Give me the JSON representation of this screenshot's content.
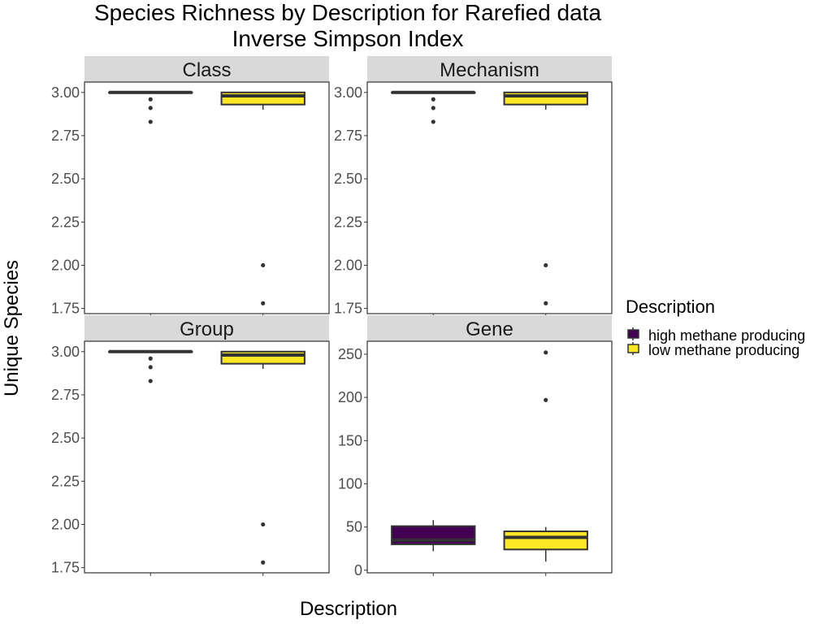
{
  "chart_data": {
    "type": "box",
    "title": "Species Richness by Description for Rarefied data",
    "subtitle": "Inverse Simpson Index",
    "xlabel": "Description",
    "ylabel": "Unique Species",
    "categories": [
      "high methane producing",
      "low methane producing"
    ],
    "legend": {
      "title": "Description",
      "position": "right",
      "entries": [
        {
          "label": "high methane producing",
          "color": "#440154"
        },
        {
          "label": "low methane producing",
          "color": "#FDE725"
        }
      ]
    },
    "panels": [
      {
        "name": "Class",
        "ylim": [
          1.72,
          3.06
        ],
        "yticks": [
          1.75,
          2.0,
          2.25,
          2.5,
          2.75,
          3.0
        ],
        "tick_labels": [
          "1.75",
          "2.00",
          "2.25",
          "2.50",
          "2.75",
          "3.00"
        ],
        "boxes": [
          {
            "group": "high methane producing",
            "min": 3.0,
            "q1": 3.0,
            "median": 3.0,
            "q3": 3.0,
            "max": 3.0,
            "outliers": [
              2.96,
              2.91,
              2.83
            ]
          },
          {
            "group": "low methane producing",
            "min": 2.9,
            "q1": 2.93,
            "median": 2.98,
            "q3": 3.0,
            "max": 3.0,
            "outliers": [
              2.0,
              1.78
            ]
          }
        ]
      },
      {
        "name": "Mechanism",
        "ylim": [
          1.72,
          3.06
        ],
        "yticks": [
          1.75,
          2.0,
          2.25,
          2.5,
          2.75,
          3.0
        ],
        "tick_labels": [
          "1.75",
          "2.00",
          "2.25",
          "2.50",
          "2.75",
          "3.00"
        ],
        "boxes": [
          {
            "group": "high methane producing",
            "min": 3.0,
            "q1": 3.0,
            "median": 3.0,
            "q3": 3.0,
            "max": 3.0,
            "outliers": [
              2.96,
              2.91,
              2.83
            ]
          },
          {
            "group": "low methane producing",
            "min": 2.9,
            "q1": 2.93,
            "median": 2.98,
            "q3": 3.0,
            "max": 3.0,
            "outliers": [
              2.0,
              1.78
            ]
          }
        ]
      },
      {
        "name": "Group",
        "ylim": [
          1.72,
          3.06
        ],
        "yticks": [
          1.75,
          2.0,
          2.25,
          2.5,
          2.75,
          3.0
        ],
        "tick_labels": [
          "1.75",
          "2.00",
          "2.25",
          "2.50",
          "2.75",
          "3.00"
        ],
        "boxes": [
          {
            "group": "high methane producing",
            "min": 3.0,
            "q1": 3.0,
            "median": 3.0,
            "q3": 3.0,
            "max": 3.0,
            "outliers": [
              2.96,
              2.91,
              2.83
            ]
          },
          {
            "group": "low methane producing",
            "min": 2.9,
            "q1": 2.93,
            "median": 2.98,
            "q3": 3.0,
            "max": 3.0,
            "outliers": [
              2.0,
              1.78
            ]
          }
        ]
      },
      {
        "name": "Gene",
        "ylim": [
          -3,
          265
        ],
        "yticks": [
          0,
          50,
          100,
          150,
          200,
          250
        ],
        "tick_labels": [
          "0",
          "50",
          "100",
          "150",
          "200",
          "250"
        ],
        "boxes": [
          {
            "group": "high methane producing",
            "min": 22,
            "q1": 30,
            "median": 35,
            "q3": 51,
            "max": 58,
            "outliers": []
          },
          {
            "group": "low methane producing",
            "min": 10,
            "q1": 24,
            "median": 38,
            "q3": 45,
            "max": 50,
            "outliers": [
              252,
              197
            ]
          }
        ]
      }
    ]
  }
}
